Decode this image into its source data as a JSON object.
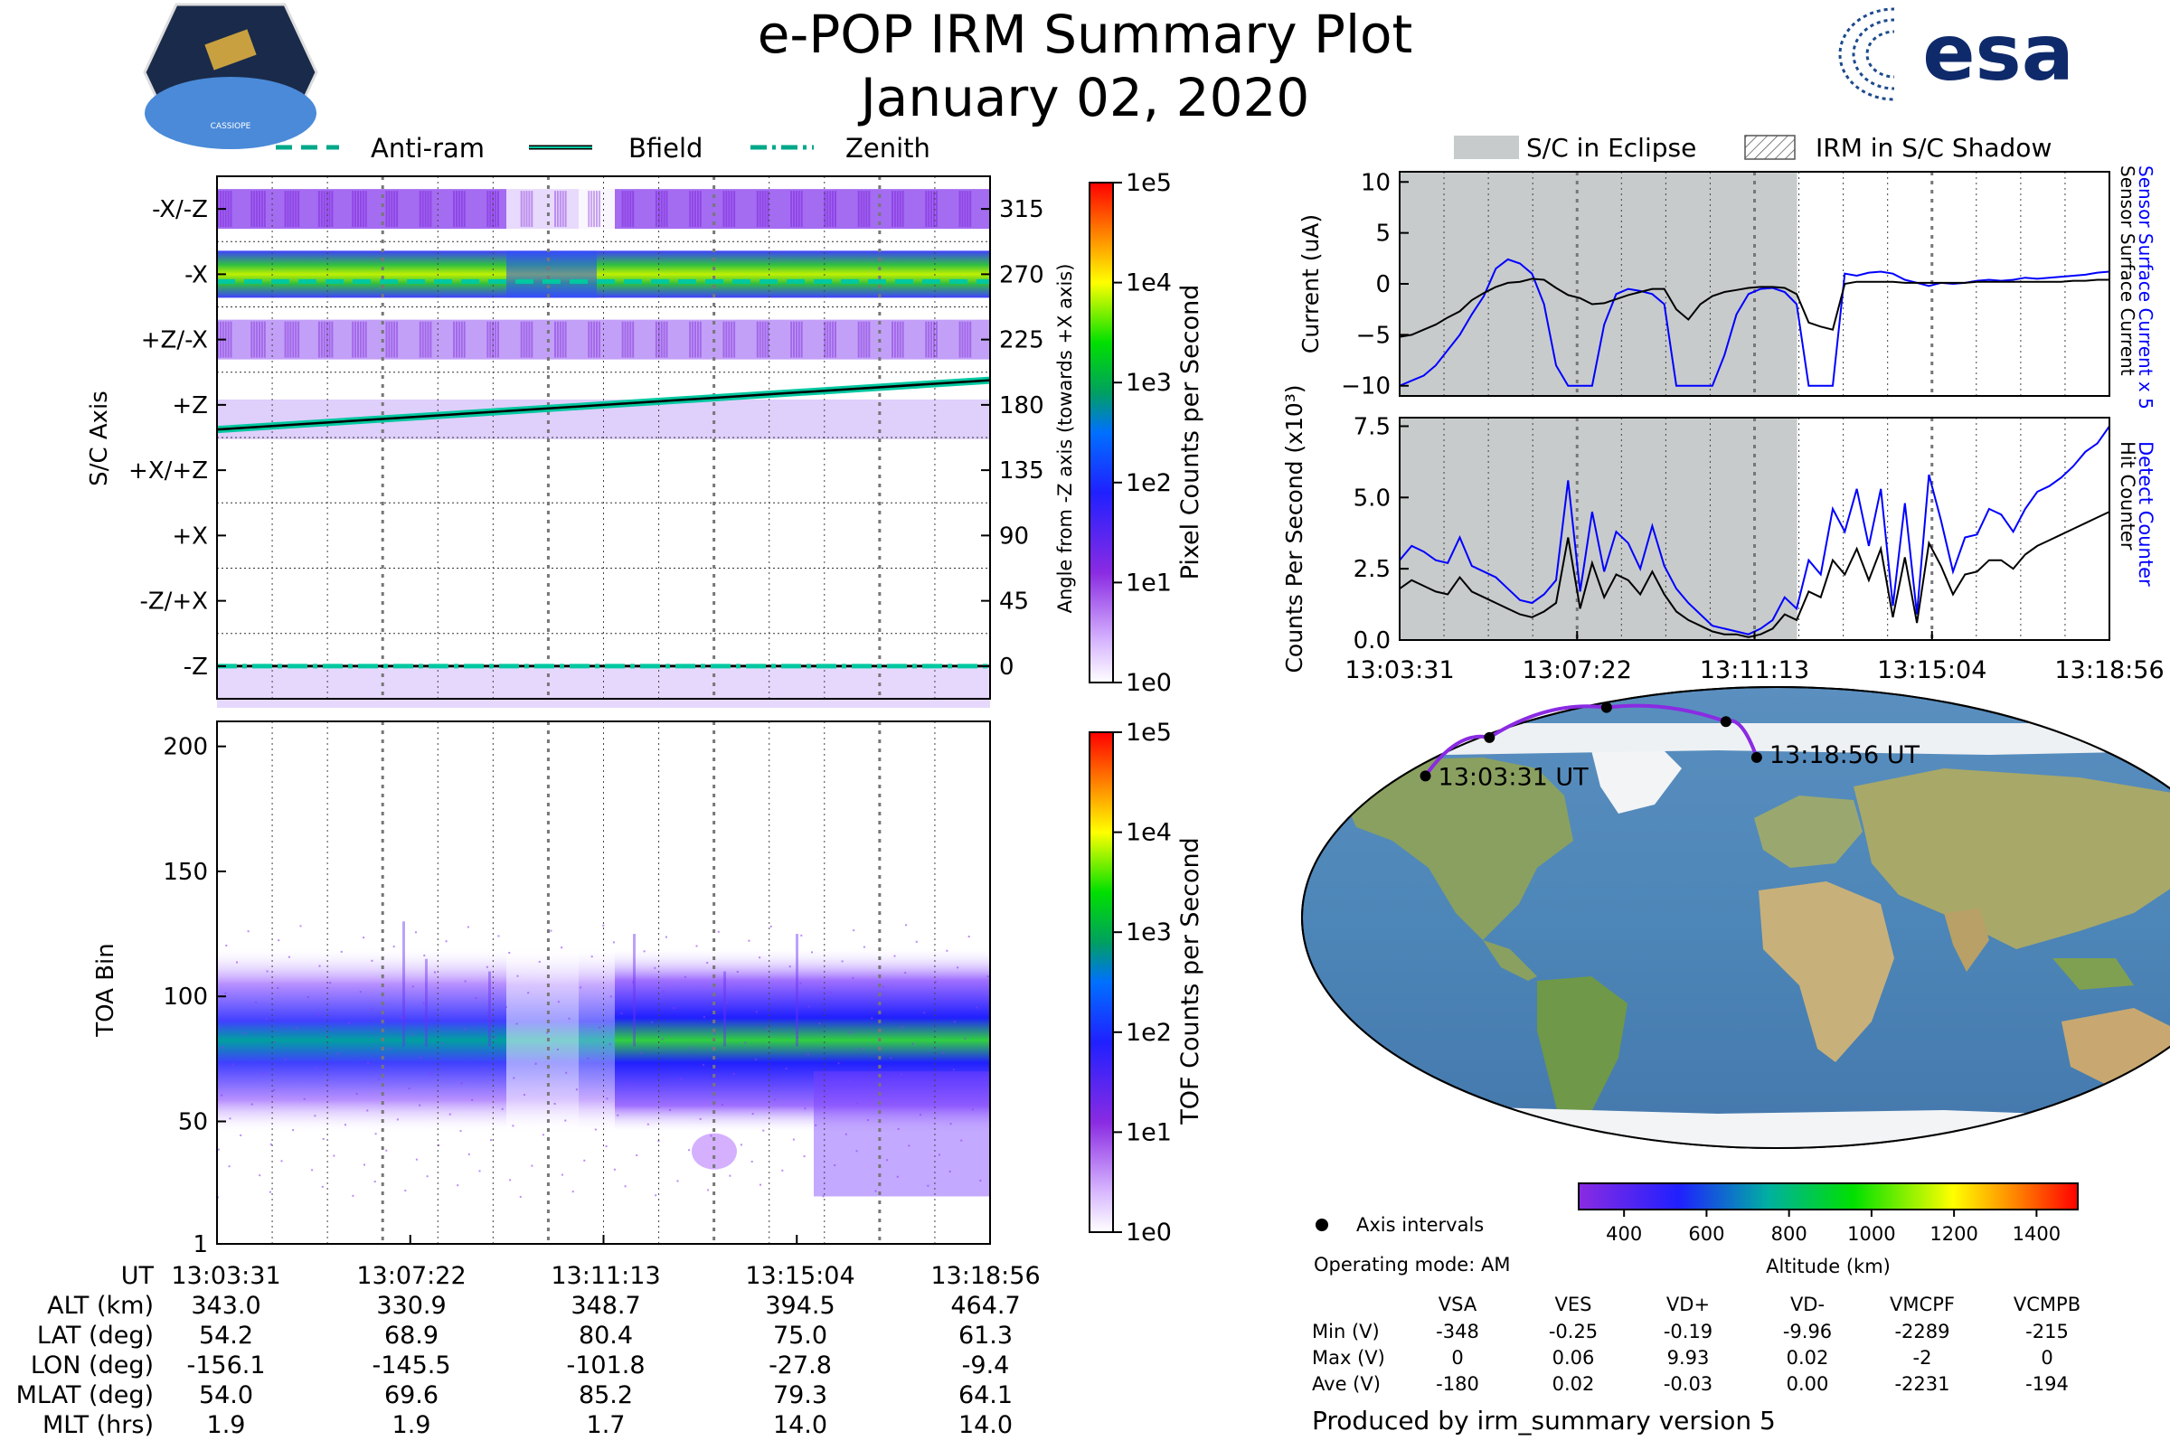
{
  "header": {
    "title": "e-POP IRM Summary Plot",
    "date": "January 02, 2020",
    "mission_badge_text": "CASSIOPE",
    "agency_logo_text": "esa"
  },
  "colors": {
    "eclipse_fill": "#c8cbcb",
    "sensor_current": "#0000ff",
    "bfield_line": "#00c8a0",
    "track_line": "#8a2be2"
  },
  "chart_data": [
    {
      "id": "sc-axis",
      "type": "heatmap",
      "ylabel": "S/C Axis",
      "y2label": "Angle from -Z axis (towards +X axis)",
      "categories": [
        "-X/-Z",
        "-X",
        "+Z/-X",
        "+Z",
        "+X/+Z",
        "+X",
        "-Z/+X",
        "-Z"
      ],
      "angle_ticks": [
        "315",
        "270",
        "225",
        "180",
        "135",
        "90",
        "45",
        "0"
      ],
      "ylim": [
        -22.5,
        337.5
      ],
      "legend": [
        "Anti-ram",
        "Bfield",
        "Zenith"
      ],
      "bfield_angle": [
        163,
        197
      ],
      "anti_ram_angle": 265,
      "zenith_angle": 0,
      "colorbar": {
        "label": "Pixel Counts per Second",
        "ticks": [
          "1e5",
          "1e4",
          "1e3",
          "1e2",
          "1e1",
          "1e0"
        ]
      }
    },
    {
      "id": "toa",
      "type": "heatmap",
      "ylabel": "TOA Bin",
      "yticks": [
        "200",
        "150",
        "100",
        "50",
        "1"
      ],
      "ylim": [
        1,
        210
      ],
      "colorbar": {
        "label": "TOF Counts per Second",
        "ticks": [
          "1e5",
          "1e4",
          "1e3",
          "1e2",
          "1e1",
          "1e0"
        ]
      }
    },
    {
      "id": "current",
      "type": "line",
      "ylabel": "Current (uA)",
      "ylim": [
        -11,
        11
      ],
      "yticks": [
        "10",
        "5",
        "0",
        "−5",
        "−10"
      ],
      "right_labels": [
        "Sensor Surface Current x 5",
        "Sensor Surface Current"
      ],
      "legend": [
        "S/C in Eclipse",
        "IRM in S/C Shadow"
      ],
      "eclipse_end_fraction": 0.56,
      "series": [
        {
          "name": "Sensor Surface Current x 5",
          "color": "#0000ff",
          "values": [
            -10,
            -9.5,
            -9,
            -8,
            -6.5,
            -5,
            -3,
            -1.2,
            1.5,
            2.4,
            2,
            1,
            -2,
            -8,
            -10,
            -10,
            -10,
            -4,
            -1,
            -0.5,
            -0.7,
            -1,
            -2,
            -10,
            -10,
            -10,
            -10,
            -7,
            -3,
            -1,
            -0.5,
            -0.4,
            -0.8,
            -2,
            -10,
            -10,
            -10,
            1,
            0.8,
            1.1,
            1.2,
            1,
            0.4,
            0.1,
            -0.2,
            0.1,
            0,
            0.1,
            0.3,
            0.4,
            0.3,
            0.4,
            0.6,
            0.5,
            0.6,
            0.7,
            0.8,
            0.9,
            1.1,
            1.2
          ]
        },
        {
          "name": "Sensor Surface Current",
          "color": "#000000",
          "values": [
            -5.2,
            -5,
            -4.5,
            -4,
            -3.3,
            -2.7,
            -1.6,
            -0.9,
            -0.3,
            0.1,
            0.2,
            0.5,
            0.4,
            -0.4,
            -1.1,
            -1.4,
            -2,
            -1.9,
            -1.5,
            -1.1,
            -0.8,
            -0.5,
            -0.5,
            -2.5,
            -3.5,
            -2,
            -1.2,
            -0.8,
            -0.6,
            -0.4,
            -0.3,
            -0.3,
            -0.4,
            -1,
            -3.8,
            -4.2,
            -4.5,
            0,
            0.2,
            0.2,
            0.2,
            0.2,
            0.1,
            0.1,
            0.1,
            0.1,
            0.1,
            0.1,
            0.2,
            0.2,
            0.2,
            0.2,
            0.2,
            0.2,
            0.2,
            0.2,
            0.3,
            0.3,
            0.4,
            0.4
          ]
        }
      ]
    },
    {
      "id": "counts",
      "type": "line",
      "ylabel": "Counts Per Second (x10³)",
      "ylim": [
        0,
        7.8
      ],
      "yticks": [
        "7.5",
        "5.0",
        "2.5",
        "0.0"
      ],
      "right_labels": [
        "Detect Counter",
        "Hit Counter"
      ],
      "xticks": [
        "13:03:31",
        "13:07:22",
        "13:11:13",
        "13:15:04",
        "13:18:56"
      ],
      "series": [
        {
          "name": "Detect Counter",
          "color": "#0000ff",
          "values": [
            2.8,
            3.3,
            3.1,
            2.8,
            2.7,
            3.6,
            2.6,
            2.4,
            2.2,
            1.8,
            1.4,
            1.3,
            1.6,
            2.1,
            5.6,
            1.7,
            4.5,
            2.4,
            3.8,
            3.4,
            2.5,
            4,
            2.6,
            1.8,
            1.3,
            0.9,
            0.5,
            0.4,
            0.3,
            0.2,
            0.4,
            0.7,
            1.5,
            1.1,
            2.8,
            2.3,
            4.6,
            3.8,
            5.3,
            3.3,
            5.3,
            1.2,
            4.8,
            0.9,
            5.8,
            4.2,
            2.4,
            3.6,
            3.7,
            4.6,
            4.4,
            3.8,
            4.6,
            5.2,
            5.4,
            5.7,
            6.1,
            6.6,
            6.9,
            7.5
          ]
        },
        {
          "name": "Hit Counter",
          "color": "#000000",
          "values": [
            1.8,
            2.1,
            1.9,
            1.7,
            1.6,
            2.2,
            1.7,
            1.5,
            1.3,
            1.1,
            0.9,
            0.8,
            1,
            1.3,
            3.6,
            1.1,
            2.7,
            1.5,
            2.3,
            2.1,
            1.6,
            2.4,
            1.6,
            1,
            0.7,
            0.5,
            0.3,
            0.2,
            0.2,
            0.1,
            0.2,
            0.4,
            0.9,
            0.7,
            1.7,
            1.5,
            2.8,
            2.3,
            3.2,
            2.1,
            3.2,
            0.8,
            2.9,
            0.6,
            3.4,
            2.6,
            1.6,
            2.3,
            2.4,
            2.8,
            2.8,
            2.5,
            3,
            3.3,
            3.5,
            3.7,
            3.9,
            4.1,
            4.3,
            4.5
          ]
        }
      ]
    },
    {
      "id": "map",
      "type": "scatter",
      "start_label": "13:03:31 UT",
      "end_label": "13:18:56 UT",
      "track": [
        {
          "lon": -156.1,
          "lat": 54.2
        },
        {
          "lon": -145.5,
          "lat": 68.9
        },
        {
          "lon": -101.8,
          "lat": 80.4
        },
        {
          "lon": -27.8,
          "lat": 75.0
        },
        {
          "lon": -9.4,
          "lat": 61.3
        }
      ],
      "legend": "Axis intervals",
      "altitude_colorbar": {
        "label": "Altitude (km)",
        "ticks": [
          "400",
          "600",
          "800",
          "1000",
          "1200",
          "1400"
        ]
      }
    }
  ],
  "info_table": {
    "row_labels": [
      "UT",
      "ALT (km)",
      "LAT (deg)",
      "LON (deg)",
      "MLAT (deg)",
      "MLT (hrs)"
    ],
    "times": [
      "13:03:31",
      "13:07:22",
      "13:11:13",
      "13:15:04",
      "13:18:56"
    ],
    "alt": [
      "343.0",
      "330.9",
      "348.7",
      "394.5",
      "464.7"
    ],
    "lat": [
      "54.2",
      "68.9",
      "80.4",
      "75.0",
      "61.3"
    ],
    "lon": [
      "-156.1",
      "-145.5",
      "-101.8",
      "-27.8",
      "-9.4"
    ],
    "mlat": [
      "54.0",
      "69.6",
      "85.2",
      "79.3",
      "64.1"
    ],
    "mlt": [
      "1.9",
      "1.9",
      "1.7",
      "14.0",
      "14.0"
    ]
  },
  "voltage": {
    "operating_mode": "Operating mode: AM",
    "cols": [
      "VSA",
      "VES",
      "VD+",
      "VD-",
      "VMCPF",
      "VCMPB"
    ],
    "rows": [
      {
        "label": "Min (V)",
        "values": [
          "-348",
          "-0.25",
          "-0.19",
          "-9.96",
          "-2289",
          "-215"
        ]
      },
      {
        "label": "Max (V)",
        "values": [
          "0",
          "0.06",
          "9.93",
          "0.02",
          "-2",
          "0"
        ]
      },
      {
        "label": "Ave (V)",
        "values": [
          "-180",
          "0.02",
          "-0.03",
          "0.00",
          "-2231",
          "-194"
        ]
      }
    ]
  },
  "footer": {
    "produced_by": "Produced by irm_summary version 5"
  }
}
